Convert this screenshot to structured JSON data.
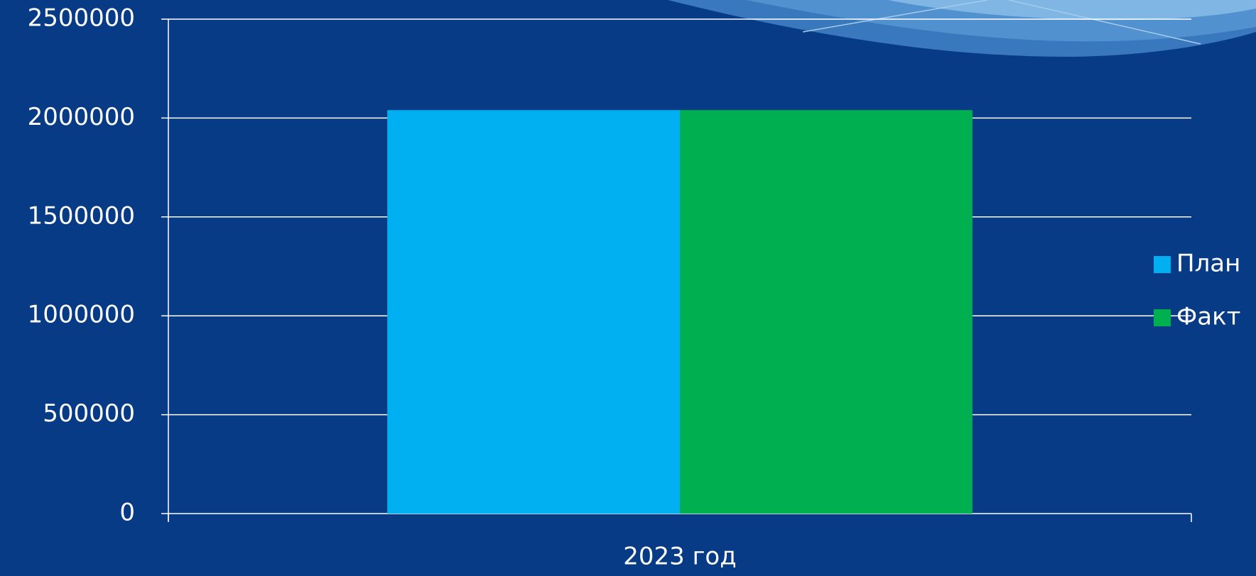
{
  "chart_data": {
    "type": "bar",
    "categories": [
      "2023 год"
    ],
    "series": [
      {
        "name": "План",
        "color": "#00b0f0",
        "values": [
          2040000
        ]
      },
      {
        "name": "Факт",
        "color": "#00b050",
        "values": [
          2040000
        ]
      }
    ],
    "ylim": [
      0,
      2500000
    ],
    "yticks": [
      0,
      500000,
      1000000,
      1500000,
      2000000,
      2500000
    ],
    "grid": true,
    "legend": "right"
  }
}
